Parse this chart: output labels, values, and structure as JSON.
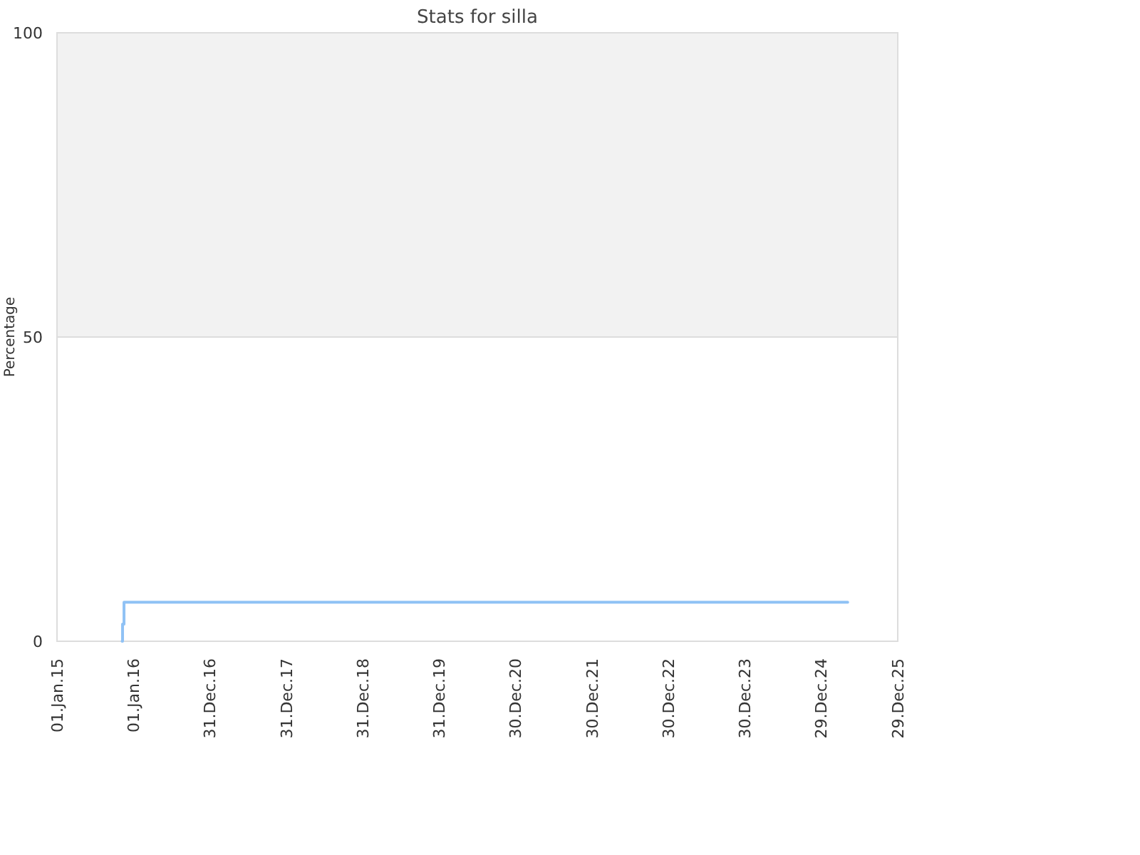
{
  "chart_data": {
    "type": "step",
    "title": "Stats for silla",
    "ylabel": "Percentage",
    "x": [
      "2015-11-08",
      "2015-11-10",
      "2015-11-17",
      "2025-05-04"
    ],
    "series": [
      {
        "color": "#90c2f5",
        "values": [
          0,
          2.8,
          6.4,
          6.4
        ]
      }
    ],
    "xlim": [
      "2015-01-01",
      "2025-12-29"
    ],
    "xticks": [
      {
        "value": "2015-01-01",
        "label": "01.Jan.15"
      },
      {
        "value": "2016-01-01",
        "label": "01.Jan.16"
      },
      {
        "value": "2016-12-31",
        "label": "31.Dec.16"
      },
      {
        "value": "2017-12-31",
        "label": "31.Dec.17"
      },
      {
        "value": "2018-12-31",
        "label": "31.Dec.18"
      },
      {
        "value": "2019-12-31",
        "label": "31.Dec.19"
      },
      {
        "value": "2020-12-30",
        "label": "30.Dec.20"
      },
      {
        "value": "2021-12-30",
        "label": "30.Dec.21"
      },
      {
        "value": "2022-12-30",
        "label": "30.Dec.22"
      },
      {
        "value": "2023-12-30",
        "label": "30.Dec.23"
      },
      {
        "value": "2024-12-29",
        "label": "29.Dec.24"
      },
      {
        "value": "2025-12-29",
        "label": "29.Dec.25"
      }
    ],
    "ylim": [
      0,
      100
    ],
    "yticks": [
      0,
      50,
      100
    ],
    "grid": "y",
    "bands": [
      {
        "axis": "y",
        "from": 50,
        "to": 100,
        "color": "#f2f2f2"
      }
    ]
  }
}
